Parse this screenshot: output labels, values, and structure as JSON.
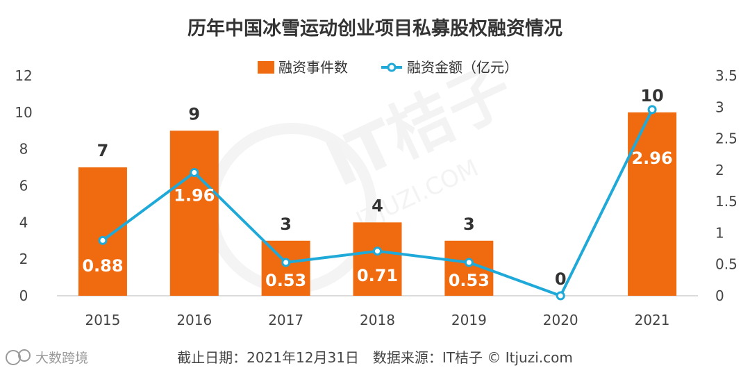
{
  "chart_data": {
    "type": "bar",
    "title": "历年中国冰雪运动创业项目私募股权融资情况",
    "categories": [
      "2015",
      "2016",
      "2017",
      "2018",
      "2019",
      "2020",
      "2021"
    ],
    "series": [
      {
        "name": "融资事件数",
        "type": "bar",
        "axis": "left",
        "color": "#F06A0F",
        "values": [
          7,
          9,
          3,
          4,
          3,
          0,
          10
        ],
        "labels": [
          "7",
          "9",
          "3",
          "4",
          "3",
          "0",
          "10"
        ]
      },
      {
        "name": "融资金额（亿元）",
        "type": "line",
        "axis": "right",
        "color": "#1FA9D8",
        "values": [
          0.88,
          1.96,
          0.53,
          0.71,
          0.53,
          0,
          2.96
        ],
        "labels": [
          "0.88",
          "1.96",
          "0.53",
          "0.71",
          "0.53",
          "",
          "2.96"
        ]
      }
    ],
    "y_left": {
      "ylim": [
        0,
        12
      ],
      "ticks": [
        "0",
        "2",
        "4",
        "6",
        "8",
        "10",
        "12"
      ]
    },
    "y_right": {
      "ylim": [
        0,
        3.5
      ],
      "ticks": [
        "0",
        "0.5",
        "1",
        "1.5",
        "2",
        "2.5",
        "3",
        "3.5"
      ]
    },
    "grid": false,
    "legend_position": "top-center"
  },
  "footnote": "截止日期：2021年12月31日　数据来源：IT桔子 © Itjuzi.com",
  "watermark": {
    "corner_text": "大数跨境",
    "background_text": "IT桔子",
    "background_sub": "ITJUZI.COM"
  }
}
